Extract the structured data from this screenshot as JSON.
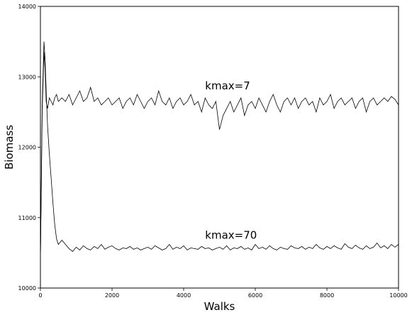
{
  "chart_data": {
    "type": "line",
    "title": "",
    "xlabel": "Walks",
    "ylabel": "Biomass",
    "xlim": [
      0,
      10000
    ],
    "ylim": [
      10000,
      14000
    ],
    "x_ticks": [
      0,
      2000,
      4000,
      6000,
      8000,
      10000
    ],
    "y_ticks": [
      10000,
      11000,
      12000,
      13000,
      14000
    ],
    "x_tick_labels": [
      "0",
      "2000",
      "4000",
      "6000",
      "8000",
      "10000"
    ],
    "y_tick_labels": [
      "10000",
      "11000",
      "12000",
      "13000",
      "14000"
    ],
    "grid": false,
    "legend": null,
    "line_color": "#000000",
    "annotations": [
      {
        "text": "kmax=7",
        "x": 4600,
        "y": 12820
      },
      {
        "text": "kmax=70",
        "x": 4600,
        "y": 10700
      }
    ],
    "series": [
      {
        "x": [
          0,
          50,
          100,
          130,
          160,
          200,
          250,
          300,
          350,
          400,
          450,
          500,
          600,
          700,
          800,
          900,
          1000,
          1100,
          1200,
          1300,
          1400,
          1500,
          1600,
          1700,
          1800,
          1900,
          2000,
          2100,
          2200,
          2300,
          2400,
          2500,
          2600,
          2700,
          2800,
          2900,
          3000,
          3100,
          3200,
          3300,
          3400,
          3500,
          3600,
          3700,
          3800,
          3900,
          4000,
          4100,
          4200,
          4300,
          4400,
          4500,
          4600,
          4700,
          4800,
          4900,
          5000,
          5100,
          5200,
          5300,
          5400,
          5500,
          5600,
          5700,
          5800,
          5900,
          6000,
          6100,
          6200,
          6300,
          6400,
          6500,
          6600,
          6700,
          6800,
          6900,
          7000,
          7100,
          7200,
          7300,
          7400,
          7500,
          7600,
          7700,
          7800,
          7900,
          8000,
          8100,
          8200,
          8300,
          8400,
          8500,
          8600,
          8700,
          8800,
          8900,
          9000,
          9100,
          9200,
          9300,
          9400,
          9500,
          9600,
          9700,
          9800,
          9900,
          10000
        ],
        "y": [
          10400,
          12500,
          13350,
          13100,
          12650,
          12550,
          12700,
          12650,
          12600,
          12700,
          12750,
          12650,
          12700,
          12650,
          12750,
          12600,
          12700,
          12800,
          12650,
          12700,
          12850,
          12650,
          12700,
          12600,
          12650,
          12700,
          12600,
          12650,
          12700,
          12550,
          12650,
          12700,
          12600,
          12750,
          12650,
          12550,
          12650,
          12700,
          12600,
          12800,
          12650,
          12600,
          12700,
          12550,
          12650,
          12700,
          12600,
          12650,
          12750,
          12600,
          12650,
          12500,
          12700,
          12600,
          12550,
          12650,
          12250,
          12450,
          12550,
          12650,
          12500,
          12600,
          12700,
          12450,
          12600,
          12650,
          12550,
          12700,
          12600,
          12500,
          12650,
          12750,
          12600,
          12500,
          12650,
          12700,
          12600,
          12700,
          12550,
          12650,
          12700,
          12600,
          12650,
          12500,
          12700,
          12600,
          12650,
          12750,
          12550,
          12650,
          12700,
          12600,
          12650,
          12700,
          12550,
          12650,
          12700,
          12500,
          12650,
          12700,
          12600,
          12650,
          12700,
          12650,
          12720,
          12680,
          12600
        ]
      },
      {
        "x": [
          0,
          50,
          100,
          130,
          160,
          200,
          250,
          300,
          350,
          400,
          450,
          500,
          600,
          700,
          800,
          900,
          1000,
          1100,
          1200,
          1300,
          1400,
          1500,
          1600,
          1700,
          1800,
          1900,
          2000,
          2100,
          2200,
          2300,
          2400,
          2500,
          2600,
          2700,
          2800,
          2900,
          3000,
          3100,
          3200,
          3300,
          3400,
          3500,
          3600,
          3700,
          3800,
          3900,
          4000,
          4100,
          4200,
          4300,
          4400,
          4500,
          4600,
          4700,
          4800,
          4900,
          5000,
          5100,
          5200,
          5300,
          5400,
          5500,
          5600,
          5700,
          5800,
          5900,
          6000,
          6100,
          6200,
          6300,
          6400,
          6500,
          6600,
          6700,
          6800,
          6900,
          7000,
          7100,
          7200,
          7300,
          7400,
          7500,
          7600,
          7700,
          7800,
          7900,
          8000,
          8100,
          8200,
          8300,
          8400,
          8500,
          8600,
          8700,
          8800,
          8900,
          9000,
          9100,
          9200,
          9300,
          9400,
          9500,
          9600,
          9700,
          9800,
          9900,
          10000
        ],
        "y": [
          10400,
          12600,
          13500,
          13250,
          12800,
          12300,
          11900,
          11550,
          11200,
          10900,
          10700,
          10620,
          10680,
          10620,
          10560,
          10520,
          10580,
          10540,
          10600,
          10560,
          10540,
          10590,
          10560,
          10620,
          10550,
          10580,
          10600,
          10560,
          10540,
          10570,
          10560,
          10590,
          10550,
          10570,
          10540,
          10560,
          10580,
          10550,
          10600,
          10570,
          10540,
          10560,
          10620,
          10550,
          10580,
          10560,
          10600,
          10540,
          10570,
          10560,
          10550,
          10590,
          10560,
          10570,
          10540,
          10560,
          10580,
          10550,
          10600,
          10540,
          10570,
          10560,
          10590,
          10550,
          10570,
          10540,
          10620,
          10560,
          10580,
          10550,
          10600,
          10560,
          10540,
          10580,
          10560,
          10550,
          10600,
          10570,
          10560,
          10590,
          10550,
          10580,
          10560,
          10620,
          10570,
          10550,
          10590,
          10560,
          10600,
          10570,
          10550,
          10630,
          10580,
          10560,
          10610,
          10570,
          10550,
          10600,
          10560,
          10580,
          10640,
          10570,
          10600,
          10560,
          10620,
          10580,
          10620
        ]
      }
    ]
  }
}
